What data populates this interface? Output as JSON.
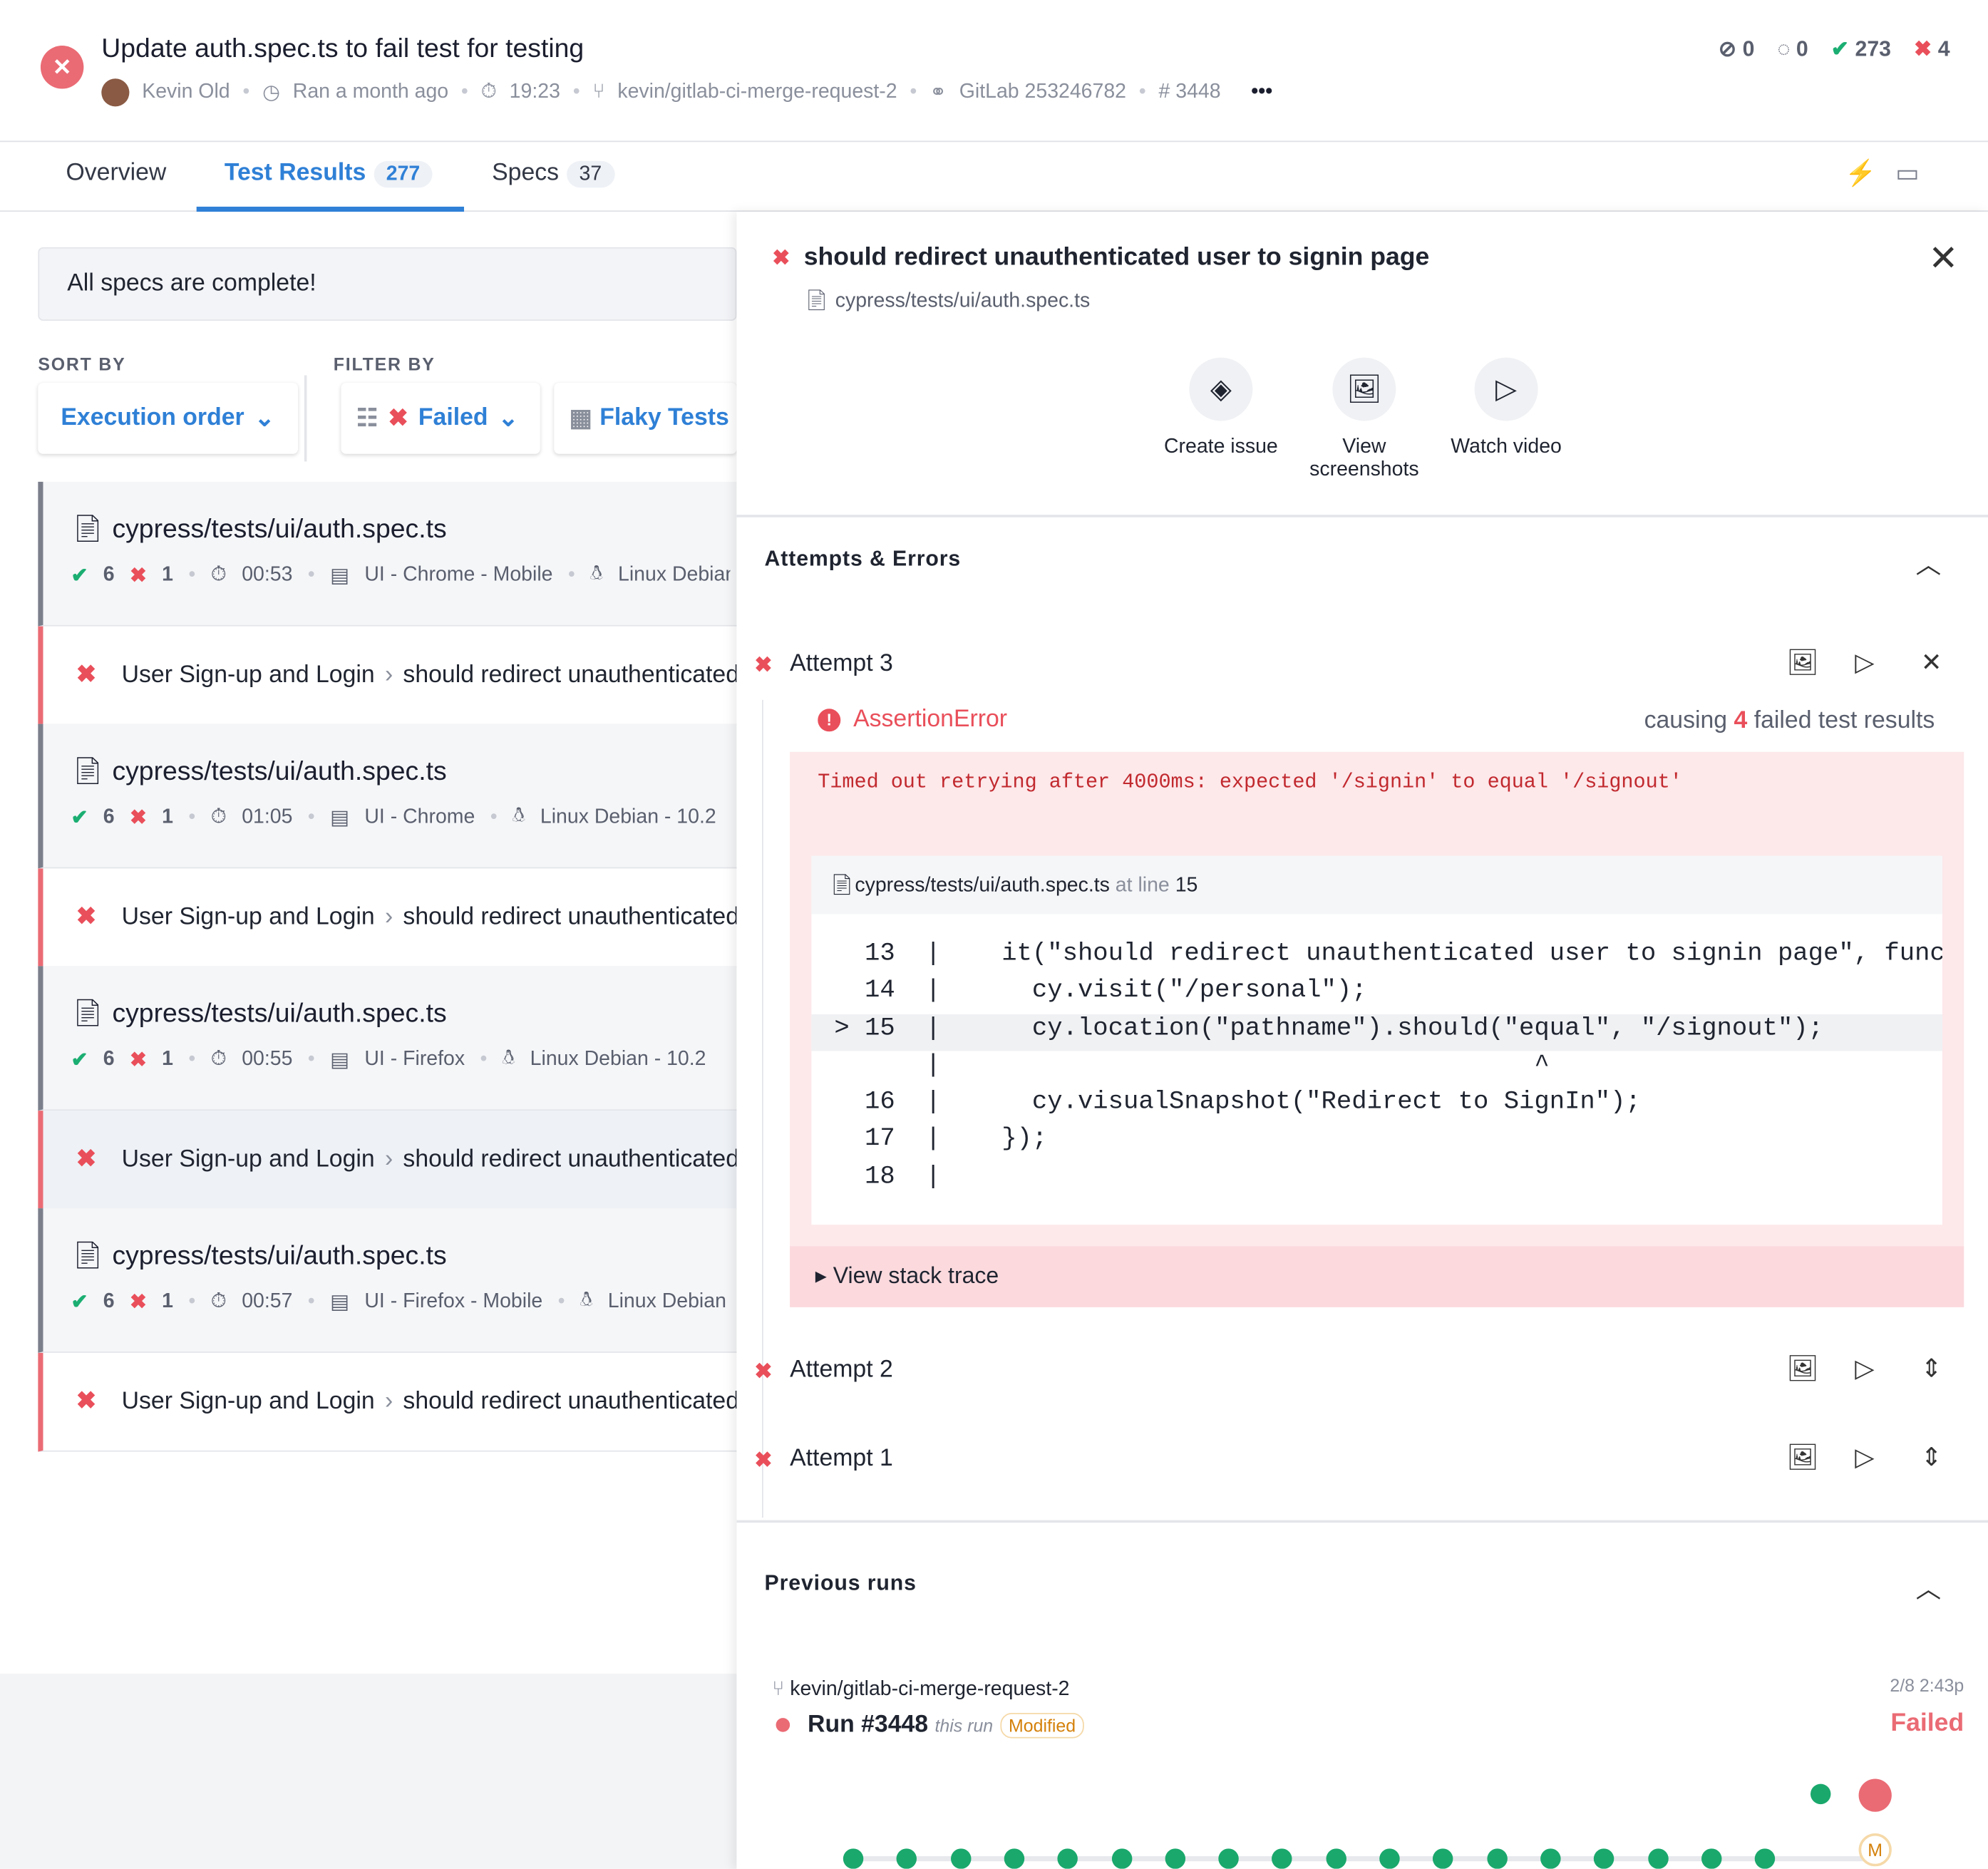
{
  "header": {
    "title": "Update auth.spec.ts to fail test for testing",
    "author": "Kevin Old",
    "ran": "Ran a month ago",
    "duration": "19:23",
    "branch": "kevin/gitlab-ci-merge-request-2",
    "ci": "GitLab 253246782",
    "run_number": "# 3448",
    "more": "•••",
    "counts": {
      "skipped": "0",
      "pending": "0",
      "passed": "273",
      "failed": "4"
    }
  },
  "tabs": [
    {
      "label": "Overview"
    },
    {
      "label": "Test Results",
      "count": "277"
    },
    {
      "label": "Specs",
      "count": "37"
    }
  ],
  "left": {
    "banner": "All specs are complete!",
    "sort_label": "SORT BY",
    "sort_value": "Execution order",
    "filter_label": "FILTER BY",
    "filter_value": "Failed",
    "flaky": "Flaky Tests",
    "specs": [
      {
        "file": "cypress/tests/ui/auth.spec.ts",
        "passed": "6",
        "failed": "1",
        "time": "00:53",
        "group": "UI - Chrome - Mobile",
        "os": "Linux Debian",
        "test_suite": "User Sign-up and Login",
        "test": "should redirect unauthenticated user to signin page"
      },
      {
        "file": "cypress/tests/ui/auth.spec.ts",
        "passed": "6",
        "failed": "1",
        "time": "01:05",
        "group": "UI - Chrome",
        "os": "Linux Debian - 10.2",
        "test_suite": "User Sign-up and Login",
        "test": "should redirect unauthenticated user to signin page"
      },
      {
        "file": "cypress/tests/ui/auth.spec.ts",
        "passed": "6",
        "failed": "1",
        "time": "00:55",
        "group": "UI - Firefox",
        "os": "Linux Debian - 10.2",
        "test_suite": "User Sign-up and Login",
        "test": "should redirect unauthenticated user to signin page"
      },
      {
        "file": "cypress/tests/ui/auth.spec.ts",
        "passed": "6",
        "failed": "1",
        "time": "00:57",
        "group": "UI - Firefox - Mobile",
        "os": "Linux Debian",
        "test_suite": "User Sign-up and Login",
        "test": "should redirect unauthenticated user to signin page"
      }
    ]
  },
  "detail": {
    "title": "should redirect unauthenticated user to signin page",
    "file": "cypress/tests/ui/auth.spec.ts",
    "actions": [
      "Create issue",
      "View screenshots",
      "Watch video"
    ],
    "attempts_title": "Attempts & Errors",
    "attempt3": "Attempt 3",
    "error_name": "AssertionError",
    "causing_pre": "causing ",
    "causing_n": "4",
    "causing_post": " failed test results",
    "error_msg": "Timed out retrying after 4000ms: expected '/signin' to equal '/signout'",
    "code_file": "cypress/tests/ui/auth.spec.ts",
    "at_line": "at line",
    "line": "15",
    "code": [
      {
        "n": "13",
        "t": "  it(\"should redirect unauthenticated user to signin page\", functio"
      },
      {
        "n": "14",
        "t": "    cy.visit(\"/personal\");"
      },
      {
        "n": "> 15",
        "t": "    cy.location(\"pathname\").should(\"equal\", \"/signout\");"
      },
      {
        "n": "",
        "t": "                                     ^"
      },
      {
        "n": "16",
        "t": "    cy.visualSnapshot(\"Redirect to SignIn\");"
      },
      {
        "n": "17",
        "t": "  });"
      },
      {
        "n": "18",
        "t": ""
      }
    ],
    "stack": "View stack trace",
    "attempt2": "Attempt 2",
    "attempt1": "Attempt 1",
    "prev_title": "Previous runs",
    "prev_branch": "kevin/gitlab-ci-merge-request-2",
    "prev_time": "2/8 2:43p",
    "run": "Run #3448",
    "this_run": "this run",
    "modified": "Modified",
    "status": "Failed",
    "m": "M"
  }
}
